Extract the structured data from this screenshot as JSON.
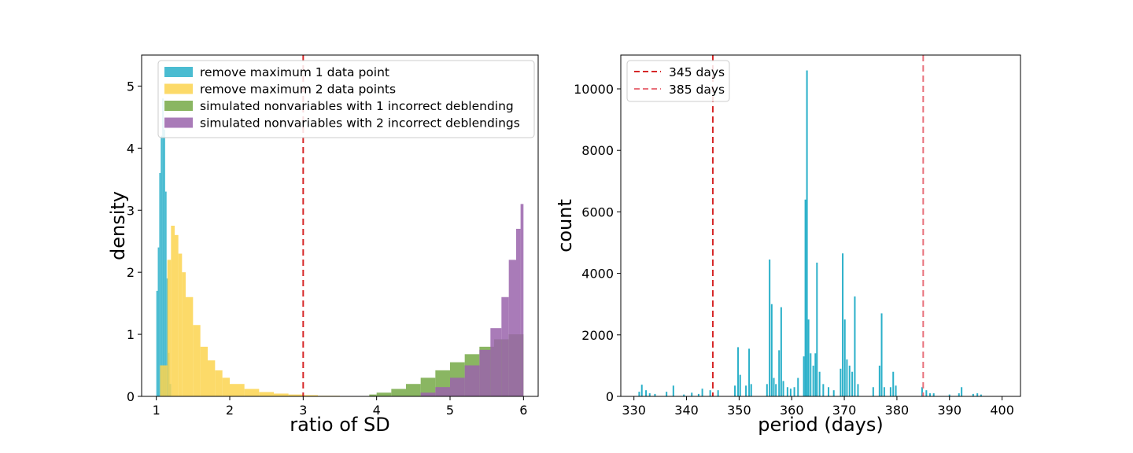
{
  "colors": {
    "cyan": "#2ab0c9",
    "yellow": "#fcd44f",
    "green": "#75a947",
    "purple": "#9a64ab",
    "threshold": "#d62728",
    "threshold_light": "#e8707a"
  },
  "chart_data": [
    {
      "type": "histogram",
      "xlabel": "ratio of SD",
      "ylabel": "density",
      "xlim": [
        0.8,
        6.2
      ],
      "ylim": [
        0,
        5.5
      ],
      "xticks": [
        1,
        2,
        3,
        4,
        5,
        6
      ],
      "yticks": [
        0,
        1,
        2,
        3,
        4,
        5
      ],
      "threshold": 3,
      "legend_position": "upper-left",
      "series": [
        {
          "name": "remove maximum 1 data point",
          "color": "#2ab0c9",
          "bins": [
            [
              1.0,
              1.02,
              1.7
            ],
            [
              1.02,
              1.04,
              2.4
            ],
            [
              1.04,
              1.06,
              3.6
            ],
            [
              1.06,
              1.08,
              4.2
            ],
            [
              1.08,
              1.1,
              4.8
            ],
            [
              1.1,
              1.12,
              4.3
            ],
            [
              1.12,
              1.14,
              3.3
            ],
            [
              1.14,
              1.16,
              1.9
            ],
            [
              1.16,
              1.18,
              0.7
            ],
            [
              1.18,
              1.2,
              0.2
            ]
          ]
        },
        {
          "name": "remove maximum 2 data points",
          "color": "#fcd44f",
          "bins": [
            [
              1.05,
              1.15,
              0.5
            ],
            [
              1.15,
              1.2,
              2.2
            ],
            [
              1.2,
              1.25,
              2.75
            ],
            [
              1.25,
              1.3,
              2.6
            ],
            [
              1.3,
              1.35,
              2.3
            ],
            [
              1.35,
              1.4,
              2.0
            ],
            [
              1.4,
              1.5,
              1.6
            ],
            [
              1.5,
              1.6,
              1.15
            ],
            [
              1.6,
              1.7,
              0.8
            ],
            [
              1.7,
              1.8,
              0.58
            ],
            [
              1.8,
              1.9,
              0.42
            ],
            [
              1.9,
              2.0,
              0.3
            ],
            [
              2.0,
              2.2,
              0.2
            ],
            [
              2.2,
              2.4,
              0.12
            ],
            [
              2.4,
              2.6,
              0.07
            ],
            [
              2.6,
              2.8,
              0.045
            ],
            [
              2.8,
              3.0,
              0.03
            ],
            [
              3.0,
              3.2,
              0.02
            ],
            [
              3.2,
              3.5,
              0.01
            ]
          ]
        },
        {
          "name": "simulated nonvariables with 1 incorrect deblending",
          "color": "#75a947",
          "bins": [
            [
              3.9,
              4.0,
              0.03
            ],
            [
              4.0,
              4.2,
              0.06
            ],
            [
              4.2,
              4.4,
              0.12
            ],
            [
              4.4,
              4.6,
              0.2
            ],
            [
              4.6,
              4.8,
              0.3
            ],
            [
              4.8,
              5.0,
              0.42
            ],
            [
              5.0,
              5.2,
              0.55
            ],
            [
              5.2,
              5.4,
              0.68
            ],
            [
              5.4,
              5.6,
              0.8
            ],
            [
              5.6,
              5.8,
              0.92
            ],
            [
              5.8,
              6.0,
              1.0
            ]
          ]
        },
        {
          "name": "simulated nonvariables with 2 incorrect deblendings",
          "color": "#9a64ab",
          "bins": [
            [
              4.6,
              4.8,
              0.06
            ],
            [
              4.8,
              5.0,
              0.15
            ],
            [
              5.0,
              5.2,
              0.3
            ],
            [
              5.2,
              5.4,
              0.5
            ],
            [
              5.4,
              5.55,
              0.75
            ],
            [
              5.55,
              5.7,
              1.1
            ],
            [
              5.7,
              5.8,
              1.6
            ],
            [
              5.8,
              5.9,
              2.2
            ],
            [
              5.9,
              5.96,
              2.7
            ],
            [
              5.96,
              6.0,
              3.1
            ]
          ]
        }
      ]
    },
    {
      "type": "bar",
      "xlabel": "period (days)",
      "ylabel": "count",
      "xlim": [
        327.5,
        403.5
      ],
      "ylim": [
        0,
        11100
      ],
      "xticks": [
        330,
        340,
        350,
        360,
        370,
        380,
        390,
        400
      ],
      "yticks": [
        0,
        2000,
        4000,
        6000,
        8000,
        10000
      ],
      "legend_position": "upper-left",
      "color": "#2ab0c9",
      "lines": [
        {
          "name": "345 days",
          "x": 345,
          "color": "#d62728"
        },
        {
          "name": "385 days",
          "x": 385,
          "color": "#e8707a"
        }
      ],
      "bars": [
        [
          331.0,
          150
        ],
        [
          331.5,
          380
        ],
        [
          332.3,
          200
        ],
        [
          333.0,
          100
        ],
        [
          334.0,
          80
        ],
        [
          336.2,
          150
        ],
        [
          337.5,
          350
        ],
        [
          339.5,
          60
        ],
        [
          341.0,
          120
        ],
        [
          342.3,
          80
        ],
        [
          343.0,
          250
        ],
        [
          344.5,
          200
        ],
        [
          346.0,
          200
        ],
        [
          349.2,
          350
        ],
        [
          349.8,
          1600
        ],
        [
          350.2,
          700
        ],
        [
          351.3,
          350
        ],
        [
          351.9,
          1550
        ],
        [
          352.3,
          400
        ],
        [
          355.3,
          400
        ],
        [
          355.8,
          4450
        ],
        [
          356.2,
          3000
        ],
        [
          356.6,
          600
        ],
        [
          357.0,
          400
        ],
        [
          357.6,
          1500
        ],
        [
          358.0,
          2900
        ],
        [
          358.4,
          500
        ],
        [
          359.2,
          300
        ],
        [
          359.8,
          250
        ],
        [
          360.5,
          300
        ],
        [
          361.2,
          600
        ],
        [
          362.3,
          1300
        ],
        [
          362.6,
          6400
        ],
        [
          362.9,
          10600
        ],
        [
          363.2,
          2500
        ],
        [
          363.6,
          1400
        ],
        [
          364.1,
          1000
        ],
        [
          364.5,
          1400
        ],
        [
          364.8,
          4350
        ],
        [
          365.3,
          800
        ],
        [
          366.0,
          400
        ],
        [
          367.0,
          300
        ],
        [
          368.0,
          200
        ],
        [
          369.3,
          900
        ],
        [
          369.7,
          4650
        ],
        [
          370.1,
          2500
        ],
        [
          370.5,
          1200
        ],
        [
          371.0,
          1000
        ],
        [
          371.5,
          800
        ],
        [
          372.0,
          3250
        ],
        [
          372.6,
          400
        ],
        [
          375.5,
          300
        ],
        [
          376.7,
          1000
        ],
        [
          377.1,
          2700
        ],
        [
          377.6,
          300
        ],
        [
          378.8,
          300
        ],
        [
          379.3,
          800
        ],
        [
          379.8,
          350
        ],
        [
          384.8,
          300
        ],
        [
          385.6,
          200
        ],
        [
          386.3,
          100
        ],
        [
          387.0,
          100
        ],
        [
          390.0,
          60
        ],
        [
          391.8,
          100
        ],
        [
          392.3,
          300
        ],
        [
          394.5,
          80
        ],
        [
          395.3,
          100
        ],
        [
          396.0,
          60
        ]
      ]
    }
  ]
}
